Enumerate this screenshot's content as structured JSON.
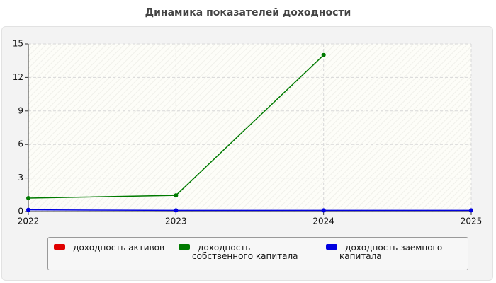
{
  "chart_data": {
    "type": "line",
    "title": "Динамика показателей доходности",
    "x": [
      2022,
      2023,
      2024,
      2025
    ],
    "xlim": [
      2022,
      2025
    ],
    "xticks": [
      2022,
      2023,
      2024,
      2025
    ],
    "ylim": [
      0,
      15
    ],
    "yticks": [
      0,
      3,
      6,
      9,
      12,
      15
    ],
    "grid": true,
    "series": [
      {
        "name": "- доходность активов",
        "color": "#e00000",
        "values": [
          null,
          null,
          null,
          null
        ]
      },
      {
        "name": "- доходность собственного капитала",
        "color": "#007a00",
        "values": [
          1.2,
          1.45,
          14,
          null
        ]
      },
      {
        "name": "- доходность заемного капитала",
        "color": "#0000e0",
        "values": [
          0.15,
          0.1,
          0.1,
          0.1
        ]
      }
    ]
  }
}
